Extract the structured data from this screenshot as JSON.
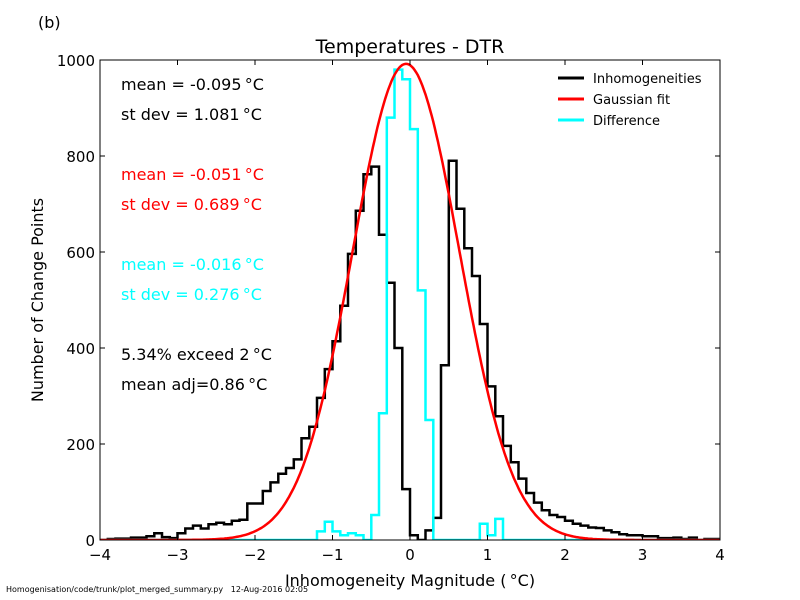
{
  "panel_label": "(b)",
  "footer": {
    "script_path": "Homogenisation/code/trunk/plot_merged_summary.py",
    "timestamp": "12-Aug-2016 02:05"
  },
  "chart_data": {
    "type": "line",
    "title": "Temperatures - DTR",
    "xlabel": "Inhomogeneity Magnitude ( °C)",
    "ylabel": "Number of Change Points",
    "xlim": [
      -4,
      4
    ],
    "ylim": [
      0,
      1000
    ],
    "xticks": [
      -4,
      -3,
      -2,
      -1,
      0,
      1,
      2,
      3,
      4
    ],
    "yticks": [
      0,
      200,
      400,
      600,
      800,
      1000
    ],
    "xtick_labels": [
      "−4",
      "−3",
      "−2",
      "−1",
      "0",
      "1",
      "2",
      "3",
      "4"
    ],
    "ytick_labels": [
      "0",
      "200",
      "400",
      "600",
      "800",
      "1000"
    ],
    "grid": false,
    "legend_position": "top-right",
    "colors": {
      "inhomogeneities": "#000000",
      "gaussian": "#ff0000",
      "difference": "#00ffff"
    },
    "series": [
      {
        "name": "Inhomogeneities",
        "style": "step",
        "x": [
          -4.0,
          -3.9,
          -3.8,
          -3.7,
          -3.6,
          -3.5,
          -3.4,
          -3.3,
          -3.2,
          -3.1,
          -3.0,
          -2.9,
          -2.8,
          -2.7,
          -2.6,
          -2.5,
          -2.4,
          -2.3,
          -2.2,
          -2.1,
          -2.0,
          -1.9,
          -1.8,
          -1.7,
          -1.6,
          -1.5,
          -1.4,
          -1.3,
          -1.2,
          -1.1,
          -1.0,
          -0.9,
          -0.8,
          -0.7,
          -0.6,
          -0.5,
          -0.4,
          -0.3,
          -0.2,
          -0.1,
          0.0,
          0.1,
          0.2,
          0.3,
          0.4,
          0.5,
          0.6,
          0.7,
          0.8,
          0.9,
          1.0,
          1.1,
          1.2,
          1.3,
          1.4,
          1.5,
          1.6,
          1.7,
          1.8,
          1.9,
          2.0,
          2.1,
          2.2,
          2.3,
          2.4,
          2.5,
          2.6,
          2.7,
          2.8,
          2.9,
          3.0,
          3.1,
          3.2,
          3.3,
          3.4,
          3.5,
          3.6,
          3.7,
          3.8,
          3.9,
          4.0
        ],
        "values": [
          0,
          2,
          3,
          3,
          5,
          5,
          8,
          14,
          6,
          4,
          14,
          24,
          30,
          24,
          33,
          36,
          33,
          40,
          42,
          76,
          76,
          102,
          120,
          138,
          150,
          168,
          212,
          236,
          296,
          356,
          414,
          488,
          596,
          686,
          762,
          778,
          636,
          536,
          400,
          106,
          10,
          0,
          20,
          46,
          364,
          790,
          690,
          608,
          550,
          450,
          320,
          258,
          196,
          162,
          128,
          98,
          78,
          62,
          52,
          48,
          40,
          34,
          30,
          26,
          25,
          20,
          16,
          12,
          10,
          10,
          8,
          8,
          4,
          4,
          5,
          2,
          5,
          0,
          2,
          2,
          0
        ]
      },
      {
        "name": "Gaussian fit",
        "style": "curve",
        "mean": -0.051,
        "sd": 0.689,
        "peak": 992
      },
      {
        "name": "Difference",
        "style": "step",
        "x": [
          -4.0,
          -3.9,
          -3.8,
          -3.7,
          -3.6,
          -3.5,
          -3.4,
          -3.3,
          -3.2,
          -3.1,
          -3.0,
          -2.9,
          -2.8,
          -2.7,
          -2.6,
          -2.5,
          -2.4,
          -2.3,
          -2.2,
          -2.1,
          -2.0,
          -1.9,
          -1.8,
          -1.7,
          -1.6,
          -1.5,
          -1.4,
          -1.3,
          -1.2,
          -1.1,
          -1.0,
          -0.9,
          -0.8,
          -0.7,
          -0.6,
          -0.5,
          -0.4,
          -0.3,
          -0.2,
          -0.1,
          0.0,
          0.1,
          0.2,
          0.3,
          0.4,
          0.5,
          0.6,
          0.7,
          0.8,
          0.9,
          1.0,
          1.1,
          1.2,
          1.3,
          1.4,
          1.5,
          1.6,
          1.7,
          1.8,
          1.9,
          2.0,
          2.1,
          2.2,
          2.3,
          2.4,
          2.5,
          2.6,
          2.7,
          2.8,
          2.9,
          3.0,
          3.1,
          3.2,
          3.3,
          3.4,
          3.5,
          3.6,
          3.7,
          3.8,
          3.9,
          4.0
        ],
        "values": [
          0,
          0,
          0,
          0,
          0,
          0,
          0,
          0,
          0,
          0,
          0,
          0,
          0,
          0,
          0,
          0,
          0,
          0,
          0,
          0,
          0,
          0,
          0,
          0,
          0,
          0,
          0,
          0,
          18,
          38,
          18,
          10,
          14,
          10,
          0,
          52,
          264,
          880,
          980,
          960,
          856,
          520,
          250,
          0,
          0,
          0,
          0,
          0,
          0,
          34,
          10,
          44,
          0,
          0,
          0,
          0,
          0,
          0,
          0,
          0,
          0,
          0,
          0,
          0,
          0,
          0,
          0,
          0,
          0,
          0,
          0,
          0,
          0,
          0,
          0,
          0,
          0,
          0,
          0,
          0,
          0
        ]
      }
    ],
    "annotations": [
      {
        "text": "mean = -0.095 °C",
        "color": "#000000"
      },
      {
        "text": "st dev =  1.081 °C",
        "color": "#000000"
      },
      {
        "text": "mean = -0.051 °C",
        "color": "#ff0000"
      },
      {
        "text": "st dev =  0.689 °C",
        "color": "#ff0000"
      },
      {
        "text": "mean = -0.016 °C",
        "color": "#00ffff"
      },
      {
        "text": "st dev =  0.276 °C",
        "color": "#00ffff"
      },
      {
        "text": "5.34% exceed 2 °C",
        "color": "#000000"
      },
      {
        "text": "mean adj=0.86 °C",
        "color": "#000000"
      }
    ]
  }
}
